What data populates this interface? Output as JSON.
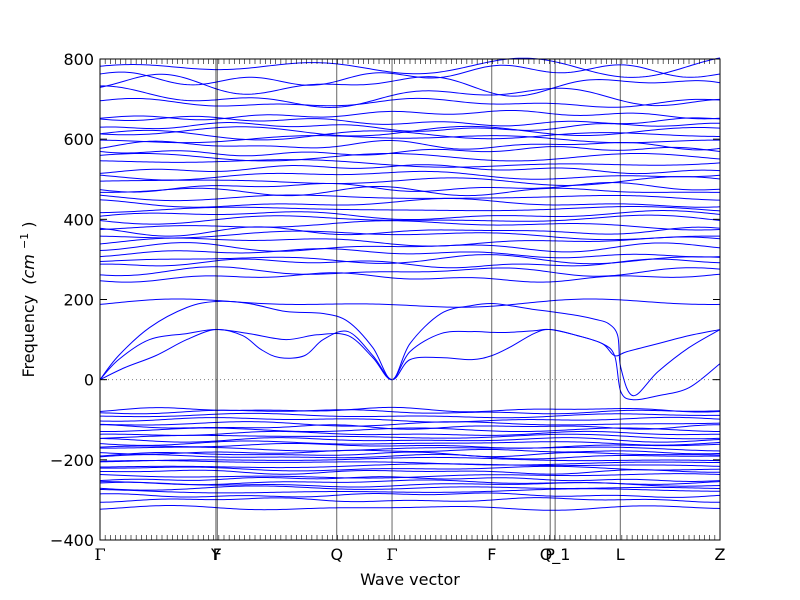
{
  "chart_data": {
    "type": "line",
    "xlabel": "Wave vector",
    "ylabel": "Frequency",
    "ylabel_unit": "(cm",
    "ylabel_unit_sup": "−1",
    "ylabel_unit_close": ")",
    "ylim": [
      -400,
      800
    ],
    "y_ticks": [
      {
        "value": -400,
        "label": "−400"
      },
      {
        "value": -200,
        "label": "−200"
      },
      {
        "value": 0,
        "label": "0"
      },
      {
        "value": 200,
        "label": "200"
      },
      {
        "value": 400,
        "label": "400"
      },
      {
        "value": 600,
        "label": "600"
      },
      {
        "value": 800,
        "label": "800"
      }
    ],
    "k_points": [
      {
        "pos": 0.0,
        "label": "Γ"
      },
      {
        "pos": 0.187,
        "label": "Y"
      },
      {
        "pos": 0.189,
        "label": "F"
      },
      {
        "pos": 0.382,
        "label": "Q"
      },
      {
        "pos": 0.471,
        "label": "Γ"
      },
      {
        "pos": 0.632,
        "label": "F"
      },
      {
        "pos": 0.726,
        "label": "P"
      },
      {
        "pos": 0.734,
        "label": "Q_1"
      },
      {
        "pos": 0.839,
        "label": "L"
      },
      {
        "pos": 1.0,
        "label": "Z"
      }
    ],
    "grid": false,
    "legend": "none",
    "line_color": "#0000ff",
    "zero_line_color": "#808080",
    "acoustic_branches": [
      {
        "x": [
          0,
          0.03,
          0.08,
          0.14,
          0.187,
          0.24,
          0.3,
          0.36,
          0.4,
          0.44,
          0.471,
          0.5,
          0.55,
          0.6,
          0.632,
          0.66,
          0.7,
          0.726,
          0.77,
          0.8,
          0.82,
          0.835,
          0.84,
          0.86,
          0.9,
          0.95,
          1.0
        ],
        "y": [
          0,
          60,
          130,
          180,
          195,
          190,
          170,
          165,
          145,
          80,
          0,
          90,
          165,
          185,
          190,
          185,
          175,
          170,
          160,
          150,
          140,
          110,
          30,
          -40,
          20,
          80,
          125
        ]
      },
      {
        "x": [
          0,
          0.03,
          0.08,
          0.14,
          0.187,
          0.24,
          0.3,
          0.35,
          0.4,
          0.44,
          0.471,
          0.5,
          0.55,
          0.6,
          0.632,
          0.66,
          0.7,
          0.726,
          0.77,
          0.81,
          0.83,
          0.84,
          0.86,
          0.9,
          0.95,
          1.0
        ],
        "y": [
          0,
          50,
          100,
          115,
          125,
          115,
          100,
          112,
          110,
          55,
          0,
          70,
          115,
          120,
          118,
          118,
          122,
          125,
          110,
          90,
          60,
          -30,
          -50,
          -40,
          -20,
          40
        ]
      },
      {
        "x": [
          0,
          0.04,
          0.09,
          0.14,
          0.187,
          0.23,
          0.26,
          0.29,
          0.33,
          0.36,
          0.4,
          0.44,
          0.471,
          0.5,
          0.55,
          0.6,
          0.632,
          0.66,
          0.7,
          0.726,
          0.77,
          0.81,
          0.83,
          0.85,
          0.9,
          0.95,
          1.0
        ],
        "y": [
          0,
          30,
          60,
          100,
          125,
          110,
          75,
          55,
          60,
          100,
          120,
          60,
          0,
          50,
          55,
          50,
          60,
          80,
          115,
          125,
          110,
          90,
          60,
          70,
          90,
          110,
          125
        ]
      }
    ],
    "flat_bands_positive": [
      190,
      255,
      270,
      290,
      300,
      315,
      330,
      345,
      360,
      370,
      385,
      400,
      410,
      425,
      440,
      455,
      470,
      480,
      495,
      510,
      525,
      540,
      555,
      570,
      585,
      600,
      610,
      620,
      630,
      645,
      660,
      690,
      705,
      735,
      760,
      780
    ],
    "flat_bands_negative": [
      -75,
      -80,
      -90,
      -100,
      -110,
      -118,
      -125,
      -135,
      -142,
      -150,
      -158,
      -165,
      -172,
      -180,
      -186,
      -192,
      -200,
      -207,
      -215,
      -222,
      -230,
      -240,
      -248,
      -256,
      -262,
      -270,
      -278,
      -288,
      -300,
      -320
    ]
  }
}
